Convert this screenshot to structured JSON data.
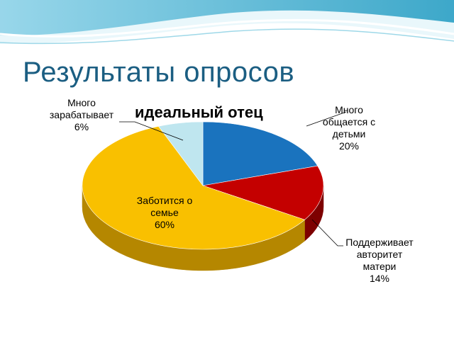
{
  "slide": {
    "title": "Результаты опросов"
  },
  "chart_data": {
    "type": "pie",
    "title": "идеальный отец",
    "start_angle_deg": 0,
    "direction": "clockwise",
    "slices": [
      {
        "name": "Много общается с детьми",
        "label_lines": [
          "Много",
          "общается с",
          "детьми",
          "20%"
        ],
        "value": 20,
        "color": "#1a73be",
        "side_color": "#124f86"
      },
      {
        "name": "Поддерживает авторитет матери",
        "label_lines": [
          "Поддерживает",
          "авторитет",
          "матери",
          "14%"
        ],
        "value": 14,
        "color": "#c40000",
        "side_color": "#7d0000"
      },
      {
        "name": "Заботится о семье",
        "label_lines": [
          "Заботится о",
          "семье",
          "60%"
        ],
        "value": 60,
        "color": "#f9c000",
        "side_color": "#b58700"
      },
      {
        "name": "Много зарабатывает",
        "label_lines": [
          "Много",
          "зарабатывает",
          "6%"
        ],
        "value": 6,
        "color": "#bfe6ef",
        "side_color": "#86b7c2"
      }
    ]
  }
}
